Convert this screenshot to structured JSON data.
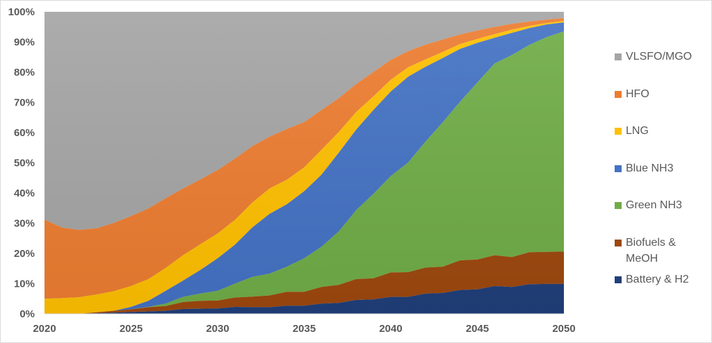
{
  "chart_data": {
    "type": "area",
    "stacked": true,
    "normalized_percent": true,
    "title": "",
    "xlabel": "",
    "ylabel": "",
    "ylim": [
      0,
      100
    ],
    "y_ticks": [
      "0%",
      "10%",
      "20%",
      "30%",
      "40%",
      "50%",
      "60%",
      "70%",
      "80%",
      "90%",
      "100%"
    ],
    "x_ticks": [
      "2020",
      "2025",
      "2030",
      "2035",
      "2040",
      "2045",
      "2050"
    ],
    "grid": false,
    "legend_position": "right",
    "x": [
      2020,
      2021,
      2022,
      2023,
      2024,
      2025,
      2026,
      2027,
      2028,
      2029,
      2030,
      2031,
      2032,
      2033,
      2034,
      2035,
      2036,
      2037,
      2038,
      2039,
      2040,
      2041,
      2042,
      2043,
      2044,
      2045,
      2046,
      2047,
      2048,
      2049,
      2050
    ],
    "series": [
      {
        "name": "Battery & H2",
        "color": "#203f7a",
        "values": [
          0,
          0,
          0,
          0.2,
          0.2,
          0.2,
          0.2,
          0.2,
          0.6,
          0.1,
          0.1,
          0.5,
          -0.1,
          0,
          0.5,
          0,
          0.7,
          0.2,
          1.0,
          0.2,
          0.8,
          0,
          1.1,
          0.2,
          1.0,
          0.2,
          1.1,
          -0.3,
          0.9,
          0.1,
          0
        ]
      },
      {
        "name": "Biofuels & MeOH",
        "color": "#9e480e",
        "values": [
          0,
          0,
          0,
          0.3,
          0.6,
          0.9,
          1.4,
          1.6,
          2.3,
          2.6,
          2.6,
          3.1,
          3.5,
          3.9,
          4.6,
          4.6,
          5.5,
          6.0,
          6.9,
          7.0,
          8.1,
          8.2,
          8.6,
          8.7,
          9.8,
          9.9,
          10.2,
          9.9,
          10.6,
          10.6,
          10.7
        ]
      },
      {
        "name": "Green NH3",
        "color": "#70ad47",
        "values": [
          0,
          0,
          0,
          0,
          0,
          0,
          0.1,
          0.8,
          1.7,
          2.4,
          3.2,
          4.6,
          6.5,
          7.2,
          8.3,
          11.1,
          13.3,
          17.7,
          22.8,
          27.9,
          31.9,
          36.3,
          41.7,
          47.8,
          52.5,
          58.6,
          63.5,
          66.9,
          68.6,
          71.1,
          72.9
        ]
      },
      {
        "name": "Blue NH3",
        "color": "#4472c4",
        "values": [
          0,
          0,
          0,
          0,
          0,
          0.8,
          2.0,
          4.2,
          5.4,
          7.8,
          10.8,
          12.9,
          16.4,
          19.8,
          20.7,
          22.2,
          23.9,
          26.1,
          26.7,
          27.8,
          28.0,
          28.4,
          24.8,
          21.3,
          17.5,
          13.1,
          8.5,
          7.3,
          5.6,
          4.2,
          3.0
        ]
      },
      {
        "name": "LNG",
        "color": "#ffc000",
        "values": [
          5.0,
          5.2,
          5.5,
          5.9,
          6.5,
          6.9,
          7.2,
          7.6,
          8.4,
          8.5,
          8.2,
          8.2,
          8.2,
          8.4,
          8.1,
          7.9,
          8.2,
          6.8,
          5.8,
          4.5,
          3.9,
          3.1,
          2.4,
          2.0,
          1.6,
          1.3,
          1.2,
          1.1,
          0.7,
          0.5,
          0.5
        ]
      },
      {
        "name": "HFO",
        "color": "#ed7d31",
        "values": [
          26.2,
          23.4,
          22.3,
          21.9,
          22.6,
          23.2,
          23.4,
          23.1,
          22.1,
          21.5,
          21.0,
          20.3,
          18.7,
          17.2,
          16.8,
          15.0,
          13.2,
          11.2,
          9.3,
          8.1,
          6.6,
          5.4,
          4.9,
          4.1,
          3.2,
          2.8,
          2.4,
          1.9,
          1.5,
          1.1,
          0.9
        ]
      },
      {
        "name": "VLSFO/MGO",
        "color": "#a5a5a5",
        "values": [
          68.8,
          71.4,
          72.2,
          71.7,
          70.1,
          67.6,
          65.1,
          61.7,
          58.5,
          55.5,
          52.4,
          48.6,
          44.5,
          41.3,
          38.8,
          36.5,
          32.5,
          28.6,
          23.9,
          19.9,
          15.9,
          13.0,
          10.9,
          9.2,
          7.5,
          6.2,
          5.0,
          4.0,
          3.2,
          2.6,
          2.1
        ]
      }
    ],
    "cumulative_tops": {
      "Battery & H2": [
        0,
        0,
        0,
        0.2,
        0.4,
        0.6,
        0.8,
        1.0,
        1.6,
        1.7,
        1.8,
        2.3,
        2.2,
        2.2,
        2.7,
        2.7,
        3.4,
        3.6,
        4.6,
        4.8,
        5.6,
        5.6,
        6.7,
        6.9,
        7.9,
        8.1,
        9.2,
        8.9,
        9.8,
        9.9,
        9.9
      ],
      "Biofuels & MeOH": [
        0,
        0,
        0,
        0.5,
        1.0,
        1.5,
        2.2,
        2.6,
        3.9,
        4.3,
        4.4,
        5.4,
        5.7,
        6.1,
        7.3,
        7.3,
        8.9,
        9.6,
        11.5,
        11.8,
        13.7,
        13.8,
        15.3,
        15.6,
        17.7,
        18.0,
        19.4,
        18.8,
        20.4,
        20.5,
        20.6
      ],
      "Green NH3": [
        0,
        0,
        0,
        0.5,
        1.0,
        1.5,
        2.3,
        3.4,
        5.6,
        6.7,
        7.6,
        10.0,
        12.2,
        13.3,
        15.6,
        18.4,
        22.2,
        27.3,
        34.3,
        39.7,
        45.6,
        50.1,
        57.0,
        63.4,
        70.2,
        76.6,
        82.9,
        85.7,
        89.0,
        91.6,
        93.5
      ],
      "Blue NH3": [
        0,
        0,
        0,
        0.5,
        1.0,
        2.3,
        4.3,
        7.6,
        11.0,
        14.5,
        18.4,
        22.9,
        28.6,
        33.1,
        36.3,
        40.6,
        46.1,
        53.4,
        61.0,
        67.5,
        73.6,
        78.5,
        81.8,
        84.7,
        87.7,
        89.7,
        91.4,
        93.0,
        94.6,
        95.8,
        96.5
      ],
      "LNG": [
        5.0,
        5.2,
        5.5,
        6.4,
        7.5,
        9.2,
        11.5,
        15.2,
        19.4,
        23.0,
        26.6,
        31.1,
        36.8,
        41.5,
        44.4,
        48.5,
        54.3,
        60.2,
        66.8,
        72.0,
        77.5,
        81.6,
        84.2,
        86.7,
        89.3,
        91.0,
        92.6,
        94.1,
        95.3,
        96.3,
        97.0
      ],
      "HFO": [
        31.2,
        28.6,
        27.8,
        28.3,
        30.1,
        32.4,
        34.9,
        38.3,
        41.5,
        44.5,
        47.6,
        51.4,
        55.5,
        58.7,
        61.2,
        63.5,
        67.5,
        71.4,
        76.1,
        80.1,
        84.1,
        87.0,
        89.1,
        90.8,
        92.5,
        93.8,
        95.0,
        96.0,
        96.8,
        97.4,
        97.9
      ],
      "VLSFO/MGO": [
        100,
        100,
        100,
        100,
        100,
        100,
        100,
        100,
        100,
        100,
        100,
        100,
        100,
        100,
        100,
        100,
        100,
        100,
        100,
        100,
        100,
        100,
        100,
        100,
        100,
        100,
        100,
        100,
        100,
        100,
        100
      ]
    }
  },
  "legend": {
    "items": [
      {
        "label": "VLSFO/MGO",
        "color": "#a5a5a5"
      },
      {
        "label": "HFO",
        "color": "#ed7d31"
      },
      {
        "label": "LNG",
        "color": "#ffc000"
      },
      {
        "label": "Blue NH3",
        "color": "#4472c4"
      },
      {
        "label": "Green NH3",
        "color": "#70ad47"
      },
      {
        "label": "Biofuels &\nMeOH",
        "color": "#9e480e"
      },
      {
        "label": "Battery & H2",
        "color": "#203f7a"
      }
    ]
  }
}
